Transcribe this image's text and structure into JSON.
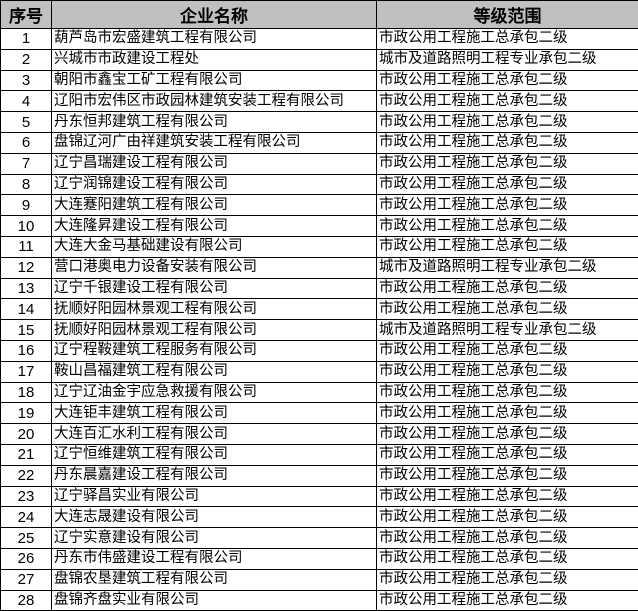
{
  "table": {
    "headers": [
      "序号",
      "企业名称",
      "等级范围"
    ],
    "rows": [
      [
        "1",
        "葫芦岛市宏盛建筑工程有限公司",
        "市政公用工程施工总承包二级"
      ],
      [
        "2",
        "兴城市市政建设工程处",
        "城市及道路照明工程专业承包二级"
      ],
      [
        "3",
        "朝阳市鑫宝工矿工程有限公司",
        "市政公用工程施工总承包二级"
      ],
      [
        "4",
        "辽阳市宏伟区市政园林建筑安装工程有限公司",
        "市政公用工程施工总承包二级"
      ],
      [
        "5",
        "丹东恒邦建筑工程有限公司",
        "市政公用工程施工总承包二级"
      ],
      [
        "6",
        "盘锦辽河广由祥建筑安装工程有限公司",
        "市政公用工程施工总承包二级"
      ],
      [
        "7",
        "辽宁昌瑞建设工程有限公司",
        "市政公用工程施工总承包二级"
      ],
      [
        "8",
        "辽宁润锦建设工程有限公司",
        "市政公用工程施工总承包二级"
      ],
      [
        "9",
        "大连蹇阳建筑工程有限公司",
        "市政公用工程施工总承包二级"
      ],
      [
        "10",
        "大连隆昇建设工程有限公司",
        "市政公用工程施工总承包二级"
      ],
      [
        "11",
        "大连大金马基础建设有限公司",
        "市政公用工程施工总承包二级"
      ],
      [
        "12",
        "营口港奥电力设备安装有限公司",
        "城市及道路照明工程专业承包二级"
      ],
      [
        "13",
        "辽宁千银建设工程有限公司",
        "市政公用工程施工总承包二级"
      ],
      [
        "14",
        "抚顺好阳园林景观工程有限公司",
        "市政公用工程施工总承包二级"
      ],
      [
        "15",
        "抚顺好阳园林景观工程有限公司",
        "城市及道路照明工程专业承包二级"
      ],
      [
        "16",
        "辽宁程鞍建筑工程服务有限公司",
        "市政公用工程施工总承包二级"
      ],
      [
        "17",
        "鞍山昌福建筑工程有限公司",
        "市政公用工程施工总承包二级"
      ],
      [
        "18",
        "辽宁辽油金宇应急救援有限公司",
        "市政公用工程施工总承包二级"
      ],
      [
        "19",
        "大连钜丰建筑工程有限公司",
        "市政公用工程施工总承包二级"
      ],
      [
        "20",
        "大连百汇水利工程有限公司",
        "市政公用工程施工总承包二级"
      ],
      [
        "21",
        "辽宁恒维建筑工程有限公司",
        "市政公用工程施工总承包二级"
      ],
      [
        "22",
        "丹东晨嘉建设工程有限公司",
        "市政公用工程施工总承包二级"
      ],
      [
        "23",
        "辽宁驿昌实业有限公司",
        "市政公用工程施工总承包二级"
      ],
      [
        "24",
        "大连志晟建设有限公司",
        "市政公用工程施工总承包二级"
      ],
      [
        "25",
        "辽宁实意建设有限公司",
        "市政公用工程施工总承包二级"
      ],
      [
        "26",
        "丹东市伟盛建设工程有限公司",
        "市政公用工程施工总承包二级"
      ],
      [
        "27",
        "盘锦农垦建筑工程有限公司",
        "市政公用工程施工总承包二级"
      ],
      [
        "28",
        "盘锦齐盘实业有限公司",
        "市政公用工程施工总承包二级"
      ]
    ]
  }
}
